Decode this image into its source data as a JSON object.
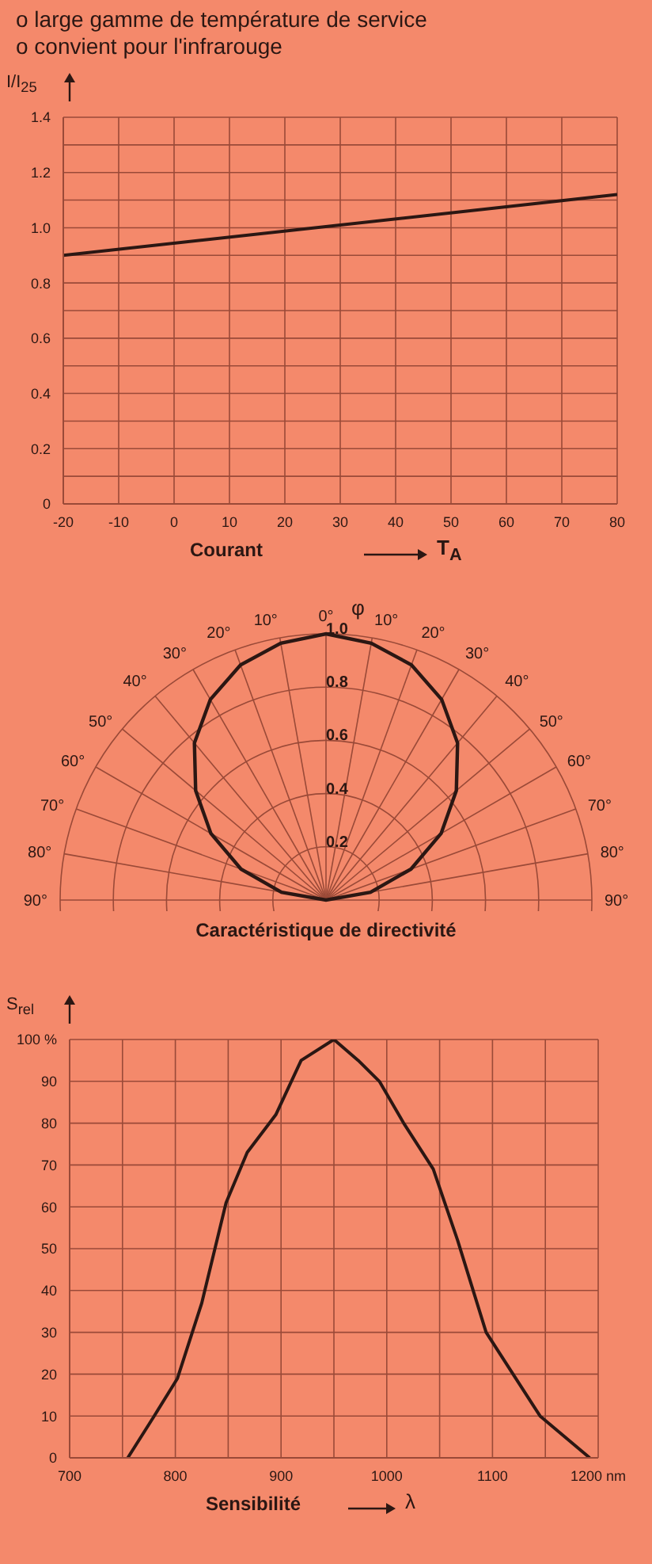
{
  "chart_data": [
    {
      "type": "line",
      "title": "Courant",
      "xlabel": "T$_{A}$",
      "ylabel": "I/I$_{25}$",
      "annotations": [
        "o large gamme de température de service",
        "o convient pour l'infrarouge"
      ],
      "x": [
        -20,
        80
      ],
      "series": [
        {
          "color": "#2b1713",
          "values": [
            0.9,
            1.12
          ]
        }
      ],
      "xlim": [
        -20,
        80
      ],
      "xticks": [
        -20,
        -10,
        0,
        10,
        20,
        30,
        40,
        50,
        60,
        70,
        80
      ],
      "ylim": [
        0,
        1.4
      ],
      "yticks": [
        0,
        {
          "value": 0.1,
          "label": null
        },
        0.2,
        {
          "value": 0.3,
          "label": null
        },
        0.4,
        {
          "value": 0.5,
          "label": null
        },
        0.6,
        {
          "value": 0.7,
          "label": null
        },
        0.8,
        {
          "value": 0.9,
          "label": null
        },
        {
          "value": 1,
          "label": "1.0"
        },
        {
          "value": 1.1,
          "label": null
        },
        1.2,
        {
          "value": 1.3,
          "label": null
        },
        1.4
      ],
      "grid": true
    },
    {
      "type": "radar",
      "title": "Caractéristique de directivité",
      "annotations": [
        "φ"
      ],
      "categories": [
        "0°",
        "10°",
        "20°",
        "30°",
        "40°",
        "50°",
        "60°",
        "70°",
        "80°",
        "90°",
        "90°",
        "80°",
        "70°",
        "60°",
        "50°",
        "40°",
        "30°",
        "20°",
        "10°"
      ],
      "series": [
        {
          "color": "#2b1713",
          "values": [
            1,
            0.98,
            0.94,
            0.87,
            0.77,
            0.64,
            0.5,
            0.34,
            0.17,
            0,
            0,
            0.17,
            0.34,
            0.5,
            0.64,
            0.77,
            0.87,
            0.94,
            0.98
          ]
        }
      ],
      "ylim": [
        0,
        1
      ],
      "yticks": [
        0.2,
        0.4,
        0.6,
        0.8,
        {
          "value": 1,
          "label": "1.0"
        }
      ],
      "grid": true
    },
    {
      "type": "line",
      "title": "Sensibilité",
      "xlabel": "λ",
      "ylabel": "S$_{rel}$",
      "x": [
        755,
        780,
        802,
        825,
        848,
        868,
        895,
        919,
        950,
        973,
        993,
        1016,
        1044,
        1067,
        1094,
        1122,
        1145,
        1192
      ],
      "series": [
        {
          "color": "#2b1713",
          "values": [
            0,
            10,
            19,
            37,
            61,
            73,
            82,
            95,
            100,
            95,
            90,
            80,
            69,
            52,
            30,
            19,
            10,
            0
          ]
        }
      ],
      "xlim": [
        700,
        1200
      ],
      "xticks": [
        700,
        {
          "value": 750,
          "label": null
        },
        800,
        {
          "value": 850,
          "label": null
        },
        900,
        {
          "value": 950,
          "label": null
        },
        1000,
        {
          "value": 1050,
          "label": null
        },
        1100,
        {
          "value": 1150,
          "label": null
        },
        {
          "value": 1200,
          "label": "1200 nm"
        }
      ],
      "ylim": [
        0,
        100
      ],
      "yticks": [
        0,
        10,
        20,
        30,
        40,
        50,
        60,
        70,
        80,
        90,
        {
          "value": 100,
          "label": "100 %"
        }
      ],
      "grid": true
    }
  ]
}
